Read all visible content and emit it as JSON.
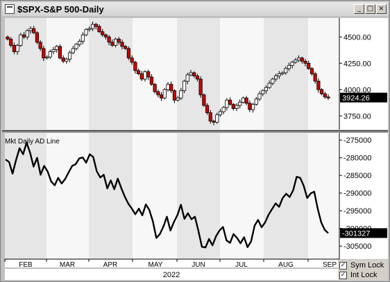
{
  "window": {
    "title": "$SPX-S&P 500-Daily",
    "minimize_glyph": "_",
    "maximize_glyph": "□",
    "close_glyph": "×"
  },
  "controls": {
    "sym_lock": {
      "label": "Sym Lock",
      "checked": true
    },
    "int_lock": {
      "label": "Int Lock",
      "checked": true
    },
    "check_glyph": "✓"
  },
  "chart_data": [
    {
      "type": "candlestick",
      "title": "$SPX-S&P 500-Daily",
      "yticks": [
        3750,
        4000,
        4250,
        4500
      ],
      "ytick_labels": [
        "3750.00",
        "4000.00",
        "4250.00",
        "4500.00"
      ],
      "ylim": [
        3620,
        4680
      ],
      "last_value_label": "3924.26",
      "last_value": 3924.26,
      "up_color": "#ffffff",
      "down_color": "#cc0000",
      "shaded_months": [
        "FEB",
        "APR",
        "JUN",
        "AUG"
      ],
      "closes": [
        4480,
        4420,
        4360,
        4420,
        4520,
        4500,
        4560,
        4580,
        4540,
        4450,
        4390,
        4300,
        4310,
        4360,
        4380,
        4410,
        4300,
        4270,
        4290,
        4350,
        4390,
        4430,
        4460,
        4520,
        4570,
        4580,
        4620,
        4600,
        4550,
        4520,
        4500,
        4450,
        4420,
        4480,
        4450,
        4410,
        4390,
        4300,
        4260,
        4180,
        4150,
        4100,
        4170,
        4120,
        4050,
        3980,
        3950,
        3920,
        4000,
        4050,
        3990,
        3900,
        3920,
        3990,
        4080,
        4140,
        4160,
        4130,
        4100,
        3950,
        3850,
        3780,
        3700,
        3690,
        3760,
        3790,
        3830,
        3900,
        3860,
        3820,
        3850,
        3880,
        3920,
        3870,
        3810,
        3860,
        3910,
        3960,
        3990,
        4020,
        4060,
        4100,
        4130,
        4150,
        4160,
        4200,
        4230,
        4260,
        4280,
        4300,
        4270,
        4250,
        4200,
        4150,
        4080,
        4000,
        3960,
        3930,
        3924.26
      ]
    },
    {
      "type": "line",
      "title": "Mkt Daily AD Line",
      "series": [
        {
          "name": "Mkt Daily AD Line",
          "color": "#000000"
        }
      ],
      "yticks": [
        -305000,
        -300000,
        -295000,
        -290000,
        -285000,
        -280000,
        -275000
      ],
      "ytick_labels": [
        "-305000",
        "-300000",
        "-295000",
        "-290000",
        "-285000",
        "-280000",
        "-275000"
      ],
      "ylim": [
        -308700,
        -273000
      ],
      "last_value_label": "-301327",
      "last_value": -301327,
      "values": [
        -280500,
        -281200,
        -284500,
        -280600,
        -277300,
        -279000,
        -275700,
        -278600,
        -282500,
        -280000,
        -284800,
        -282300,
        -283900,
        -286700,
        -287800,
        -285700,
        -287300,
        -286000,
        -284100,
        -282300,
        -281800,
        -280200,
        -279900,
        -281400,
        -279000,
        -279800,
        -283800,
        -285600,
        -284800,
        -288700,
        -286400,
        -288900,
        -285900,
        -288600,
        -291000,
        -293000,
        -294400,
        -296000,
        -294400,
        -296300,
        -293200,
        -294800,
        -298000,
        -302700,
        -301600,
        -299500,
        -296700,
        -300600,
        -298200,
        -296200,
        -293300,
        -297300,
        -295700,
        -297400,
        -296700,
        -300800,
        -305200,
        -305400,
        -303000,
        -304800,
        -302200,
        -300600,
        -299600,
        -303400,
        -304100,
        -301600,
        -302700,
        -304200,
        -302500,
        -305300,
        -303700,
        -299200,
        -297600,
        -299700,
        -298300,
        -296100,
        -294500,
        -292900,
        -293900,
        -291400,
        -290200,
        -291100,
        -289200,
        -285400,
        -285700,
        -287900,
        -291400,
        -290100,
        -289600,
        -294400,
        -298300,
        -300400,
        -301327
      ]
    }
  ],
  "x_axis": {
    "month_labels": [
      "FEB",
      "MAR",
      "APR",
      "MAY",
      "JUN",
      "JUL",
      "AUG",
      "SEP"
    ],
    "year_label": "2022"
  },
  "colors": {
    "panel_bg": "#f7f7f7",
    "shade": "#e6e6e6",
    "axis_bg": "#ffffff",
    "label_box": "#000000"
  }
}
